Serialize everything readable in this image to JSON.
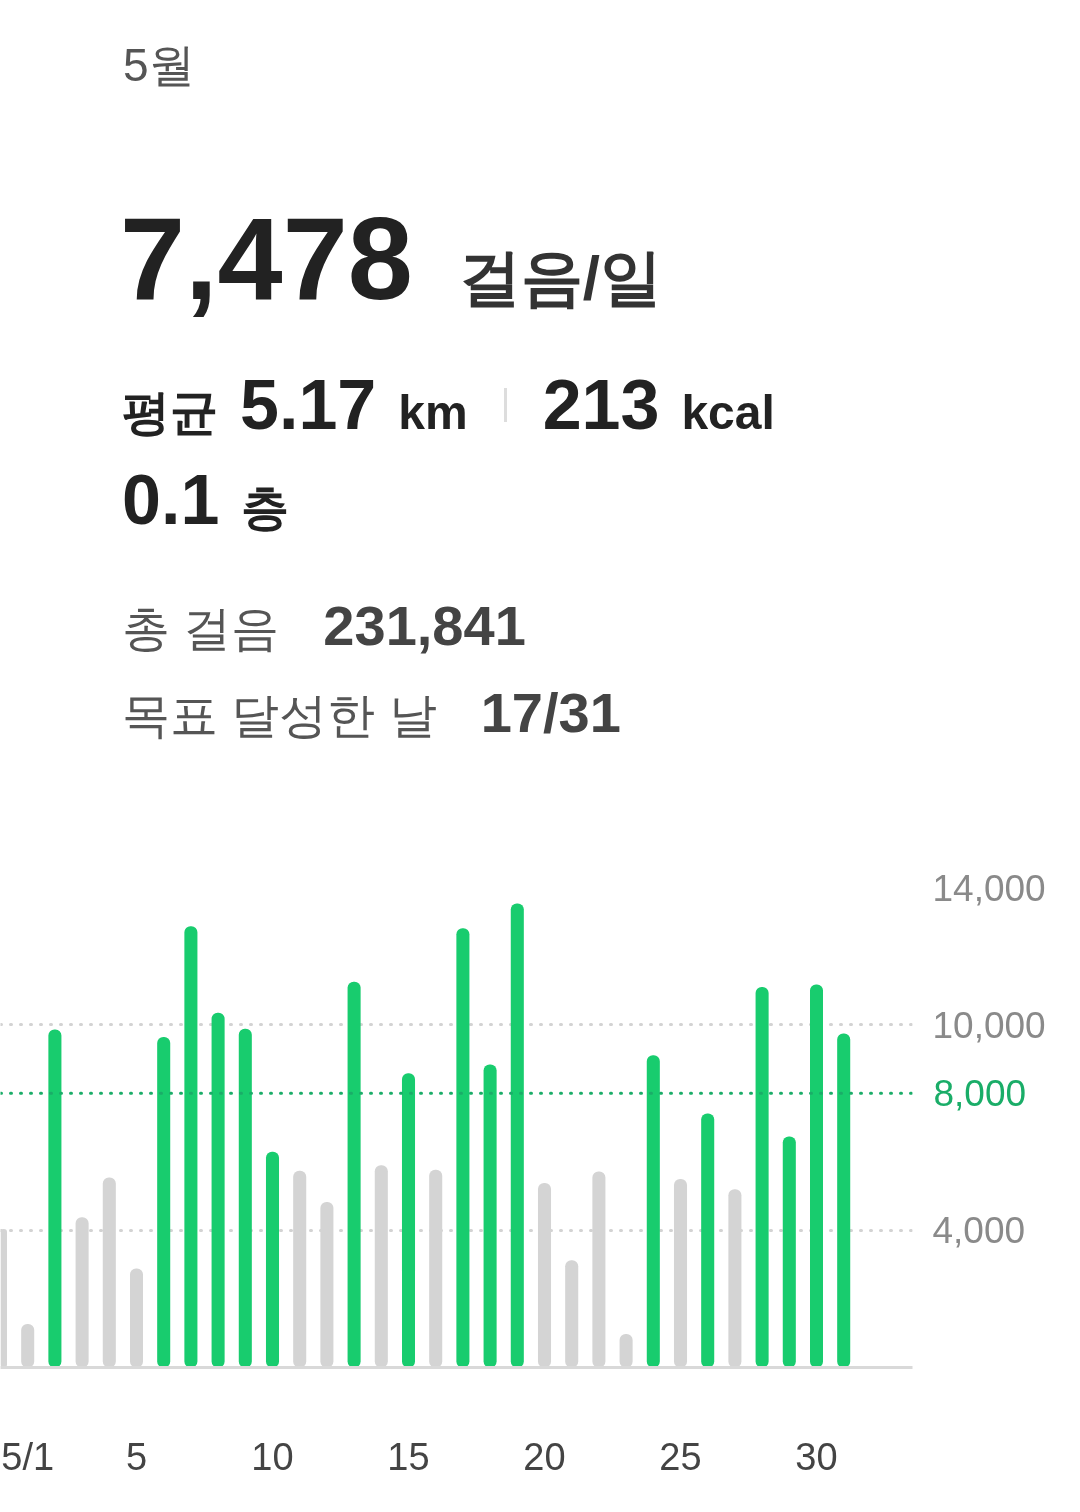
{
  "chart_data": {
    "type": "bar",
    "title": "5월",
    "subtitle": "7,478 걸음/일",
    "annotations": [
      "평균 5.17 km",
      "213 kcal",
      "0.1 층",
      "총 걸음 231,841",
      "목표 달성한 날 17/31"
    ],
    "categories": [
      null,
      "5/1",
      null,
      null,
      null,
      "5",
      null,
      null,
      null,
      null,
      "10",
      null,
      null,
      null,
      null,
      "15",
      null,
      null,
      null,
      null,
      "20",
      null,
      null,
      null,
      null,
      "25",
      null,
      null,
      null,
      null,
      "30",
      null
    ],
    "values": [
      4040,
      1270,
      9860,
      4380,
      5540,
      2890,
      9640,
      12870,
      10350,
      9880,
      6290,
      5740,
      4830,
      11250,
      5900,
      8580,
      5770,
      12810,
      8840,
      13530,
      5380,
      3130,
      5720,
      980,
      9110,
      5500,
      7410,
      5200,
      11100,
      6740,
      11170,
      9740
    ],
    "colors": [
      "#d4d4d4",
      "#d4d4d4",
      "#18cc6e",
      "#d4d4d4",
      "#d4d4d4",
      "#d4d4d4",
      "#18cc6e",
      "#18cc6e",
      "#18cc6e",
      "#18cc6e",
      "#18cc6e",
      "#d4d4d4",
      "#d4d4d4",
      "#18cc6e",
      "#d4d4d4",
      "#18cc6e",
      "#d4d4d4",
      "#18cc6e",
      "#18cc6e",
      "#18cc6e",
      "#d4d4d4",
      "#d4d4d4",
      "#d4d4d4",
      "#d4d4d4",
      "#18cc6e",
      "#d4d4d4",
      "#18cc6e",
      "#d4d4d4",
      "#18cc6e",
      "#18cc6e",
      "#18cc6e",
      "#18cc6e"
    ],
    "ylim": [
      0,
      14000
    ],
    "yticks": [
      {
        "value": 4000,
        "label": "4,000"
      },
      {
        "value": 10000,
        "label": "10,000"
      },
      {
        "value": 14000,
        "label": "14,000"
      }
    ],
    "grid": "y",
    "ref_lines": [
      {
        "axis": "y",
        "value": 8000,
        "label": "8,000",
        "color": "#1aad68",
        "line_style": "dotted"
      }
    ]
  }
}
